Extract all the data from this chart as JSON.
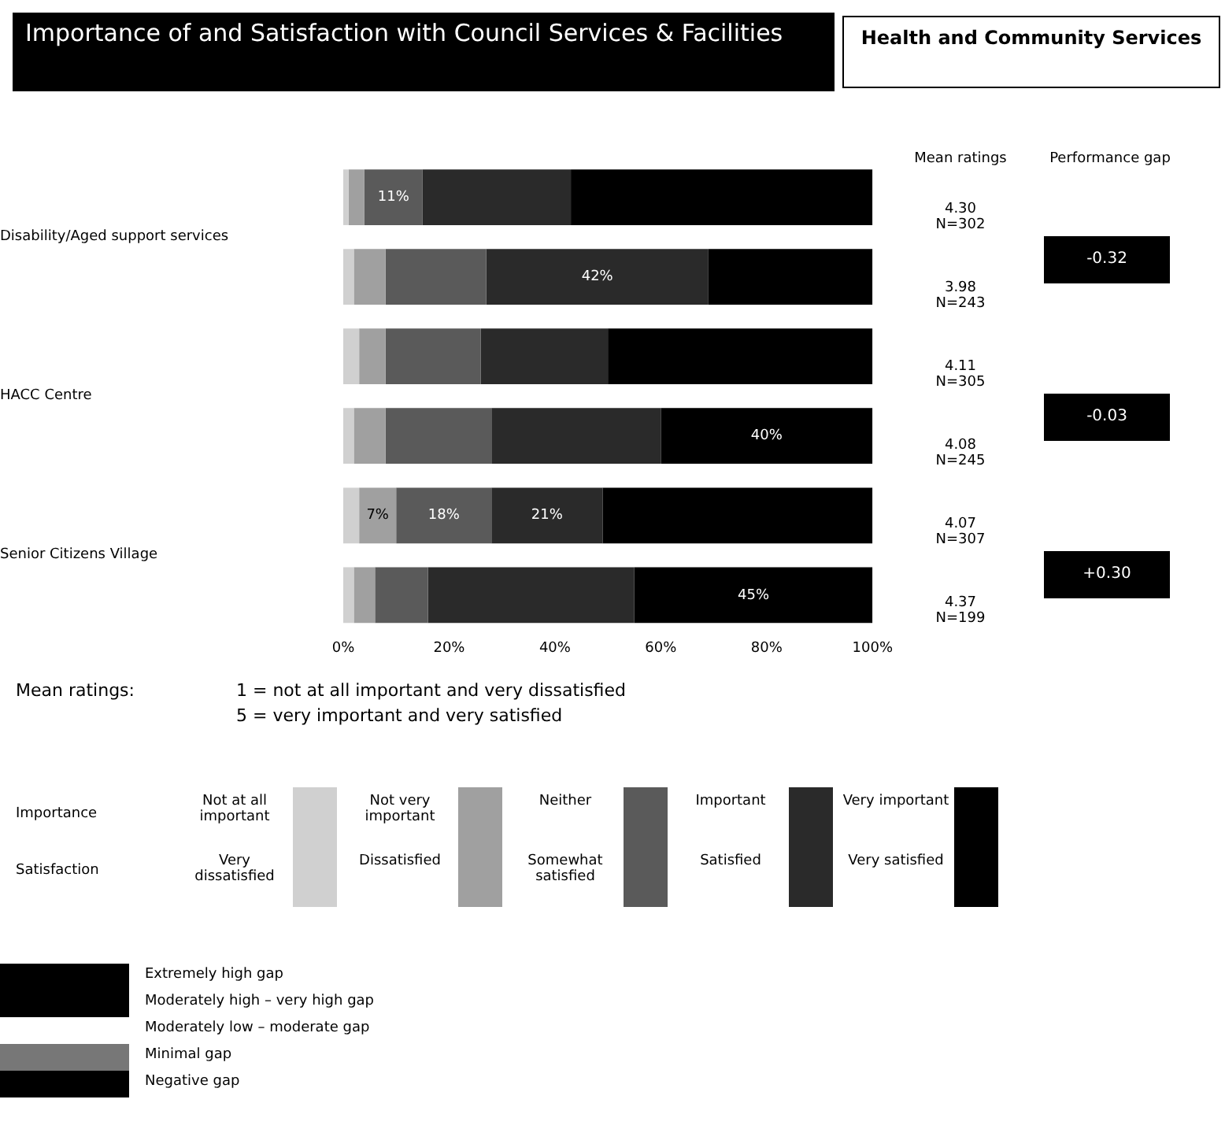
{
  "chart_data": {
    "type": "bar",
    "orientation": "horizontal",
    "stacked": true,
    "title": "Importance of and Satisfaction with Council Services & Facilities",
    "subtitle": "Health and Community Services",
    "categories": [
      "Disability/Aged support services",
      null,
      "HACC Centre",
      null,
      "Senior Citizens Village",
      null
    ],
    "series": [
      {
        "color": "#d0d0d0",
        "values": [
          1,
          2,
          3,
          2,
          3,
          2
        ],
        "value_labels": [
          null,
          null,
          null,
          null,
          null,
          null
        ]
      },
      {
        "color": "#a0a0a0",
        "values": [
          3,
          6,
          5,
          6,
          7,
          4
        ],
        "value_labels": [
          null,
          null,
          null,
          null,
          "7%",
          null
        ]
      },
      {
        "color": "#5a5a5a",
        "values": [
          11,
          19,
          18,
          20,
          18,
          10
        ],
        "value_labels": [
          "11%",
          null,
          null,
          null,
          "18%",
          null
        ]
      },
      {
        "color": "#2a2a2a",
        "values": [
          28,
          42,
          24,
          32,
          21,
          39
        ],
        "value_labels": [
          null,
          "42%",
          null,
          null,
          "21%",
          null
        ]
      },
      {
        "color": "#000000",
        "values": [
          57,
          31,
          50,
          40,
          51,
          45
        ],
        "value_labels": [
          null,
          null,
          null,
          "40%",
          null,
          "45%"
        ]
      }
    ],
    "xlim": [
      0,
      100
    ],
    "xticks": [
      {
        "value": 0,
        "label": "0%"
      },
      {
        "value": 20,
        "label": "20%"
      },
      {
        "value": 40,
        "label": "40%"
      },
      {
        "value": 60,
        "label": "60%"
      },
      {
        "value": 80,
        "label": "80%"
      },
      {
        "value": 100,
        "label": "100%"
      }
    ],
    "grid": false,
    "legend": false,
    "annotations": [
      "Mean ratings",
      "Performance gap",
      "4.30\nN=302",
      "3.98\nN=243",
      "4.11\nN=305",
      "4.08\nN=245",
      "4.07\nN=307",
      "4.37\nN=199",
      "-0.32",
      "-0.03",
      "+0.30",
      "Mean ratings:",
      "1 = not at all important and very dissatisfied",
      "5 = very important and very satisfied",
      "Importance",
      "Satisfaction",
      "Not at all important",
      "Not very important",
      "Neither",
      "Important",
      "Very important",
      "Very dissatisfied",
      "Dissatisfied",
      "Somewhat satisfied",
      "Satisfied",
      "Very satisfied",
      "Extremely high gap",
      "Moderately high – very high gap",
      "Moderately low – moderate gap",
      "Minimal gap",
      "Negative gap"
    ]
  }
}
